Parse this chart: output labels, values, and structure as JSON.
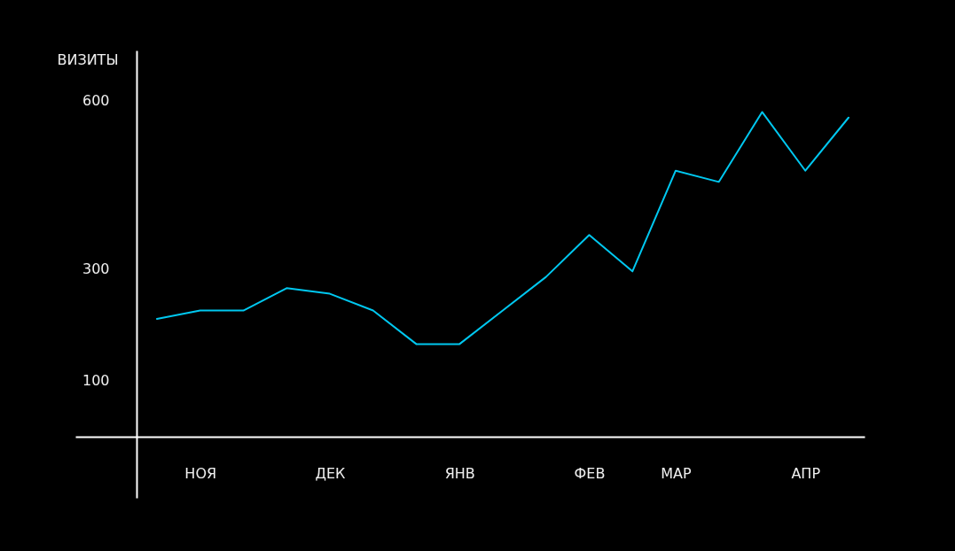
{
  "chart_data": {
    "type": "line",
    "ylabel": "ВИЗИТЫ",
    "categories": [
      null,
      "НОЯ",
      null,
      null,
      "ДЕК",
      null,
      null,
      "ЯНВ",
      null,
      null,
      "ФЕВ",
      null,
      "МАР",
      null,
      null,
      "АПР",
      null
    ],
    "series": [
      {
        "color": "#00c8f0",
        "values": [
          210,
          225,
          225,
          265,
          255,
          225,
          165,
          165,
          225,
          285,
          360,
          295,
          475,
          455,
          580,
          475,
          570
        ]
      }
    ],
    "ylim": [
      -110,
      690
    ],
    "yticks": [
      100,
      300,
      600
    ]
  }
}
